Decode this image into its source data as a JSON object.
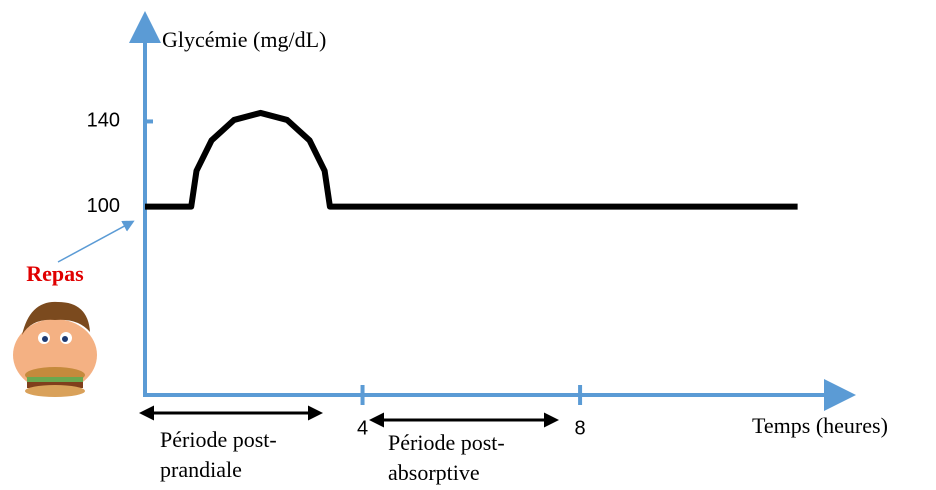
{
  "chart_data": {
    "type": "line",
    "y_label": "Glycémie (mg/dL)",
    "x_label": "Temps (heures)",
    "xlim": [
      0,
      13
    ],
    "ylim": [
      11.5,
      190
    ],
    "xticks": [
      4,
      8
    ],
    "yticks": [
      100,
      140
    ],
    "axis_color": "#5b9bd5",
    "x": [
      0,
      0.85,
      0.947,
      1.224,
      1.637,
      2.125,
      2.613,
      3.026,
      3.303,
      3.4,
      12
    ],
    "series": [
      {
        "color": "#000000",
        "values": [
          100,
          100,
          116.8,
          131.1,
          140.7,
          144,
          140.7,
          131.1,
          116.8,
          100,
          100
        ]
      }
    ],
    "annotations": {
      "meal": "Repas",
      "postprandial": [
        "Période post-",
        "prandiale"
      ],
      "postabsorptive": [
        "Période post-",
        "absorptive"
      ]
    }
  }
}
